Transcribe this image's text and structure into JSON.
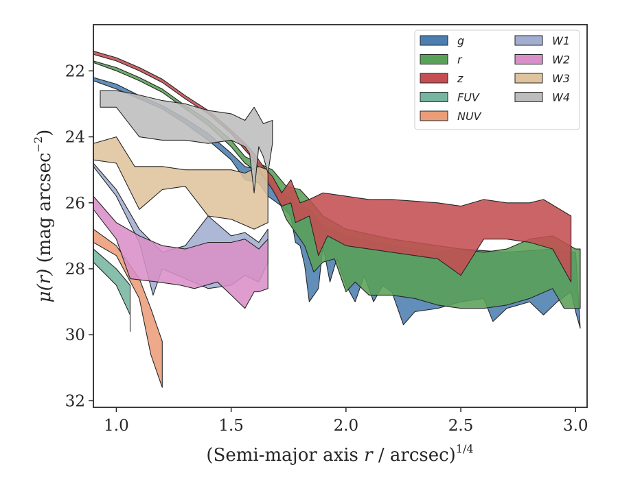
{
  "chart_data": {
    "type": "area",
    "xlabel_main": "(Semi-major axis ",
    "xlabel_var": "r",
    "xlabel_unit": " / arcsec)",
    "xlabel_exp": "1/4",
    "ylabel_sym": "μ(",
    "ylabel_var": "r",
    "ylabel_close": ")",
    "ylabel_unit": " (mag arcsec",
    "ylabel_exp": "−2",
    "ylabel_end": ")",
    "xlim": [
      0.9,
      3.05
    ],
    "ylim": [
      32.2,
      20.6
    ],
    "y_inverted": true,
    "xticks": [
      1.0,
      1.5,
      2.0,
      2.5,
      3.0
    ],
    "xtick_labels": [
      "1.0",
      "1.5",
      "2.0",
      "2.5",
      "3.0"
    ],
    "yticks": [
      22,
      24,
      26,
      28,
      30,
      32
    ],
    "ytick_labels": [
      "22",
      "24",
      "26",
      "28",
      "30",
      "32"
    ],
    "legend_position": "top-right",
    "legend_columns": 2,
    "series": [
      {
        "name": "g",
        "label_text": "g",
        "color": "#4c7eb0",
        "upper": [
          [
            0.9,
            22.2
          ],
          [
            1.0,
            22.4
          ],
          [
            1.1,
            22.75
          ],
          [
            1.2,
            23.05
          ],
          [
            1.3,
            23.45
          ],
          [
            1.4,
            23.9
          ],
          [
            1.5,
            24.5
          ],
          [
            1.56,
            24.9
          ],
          [
            1.62,
            25.0
          ],
          [
            1.68,
            25.3
          ],
          [
            1.74,
            25.8
          ],
          [
            1.8,
            26.1
          ],
          [
            1.84,
            26.2
          ],
          [
            1.9,
            26.7
          ],
          [
            2.0,
            27.0
          ],
          [
            2.2,
            27.3
          ],
          [
            2.4,
            27.5
          ],
          [
            2.5,
            27.4
          ],
          [
            2.7,
            27.5
          ],
          [
            2.9,
            27.4
          ],
          [
            3.0,
            27.5
          ]
        ],
        "lower": [
          [
            0.9,
            22.3
          ],
          [
            1.0,
            22.55
          ],
          [
            1.1,
            22.85
          ],
          [
            1.2,
            23.15
          ],
          [
            1.3,
            23.6
          ],
          [
            1.4,
            24.1
          ],
          [
            1.5,
            24.7
          ],
          [
            1.56,
            25.3
          ],
          [
            1.62,
            25.4
          ],
          [
            1.66,
            25.8
          ],
          [
            1.72,
            26.1
          ],
          [
            1.76,
            26.4
          ],
          [
            1.78,
            27.2
          ],
          [
            1.8,
            27.3
          ],
          [
            1.82,
            27.9
          ],
          [
            1.84,
            29.0
          ],
          [
            1.88,
            28.6
          ],
          [
            1.9,
            27.3
          ],
          [
            1.93,
            28.4
          ],
          [
            1.96,
            27.7
          ],
          [
            2.0,
            28.5
          ],
          [
            2.04,
            29.0
          ],
          [
            2.08,
            28.2
          ],
          [
            2.12,
            29.0
          ],
          [
            2.16,
            28.5
          ],
          [
            2.2,
            28.7
          ],
          [
            2.25,
            29.7
          ],
          [
            2.3,
            29.3
          ],
          [
            2.4,
            29.2
          ],
          [
            2.5,
            29.0
          ],
          [
            2.6,
            28.9
          ],
          [
            2.64,
            29.6
          ],
          [
            2.7,
            29.2
          ],
          [
            2.8,
            29.0
          ],
          [
            2.86,
            29.4
          ],
          [
            2.92,
            29.0
          ],
          [
            2.98,
            28.7
          ],
          [
            3.0,
            29.3
          ],
          [
            3.02,
            29.8
          ]
        ]
      },
      {
        "name": "r",
        "label_text": "r",
        "color": "#5aa158",
        "upper": [
          [
            0.9,
            21.7
          ],
          [
            1.0,
            21.9
          ],
          [
            1.1,
            22.2
          ],
          [
            1.2,
            22.55
          ],
          [
            1.3,
            23.05
          ],
          [
            1.4,
            23.5
          ],
          [
            1.5,
            24.1
          ],
          [
            1.56,
            24.6
          ],
          [
            1.62,
            24.8
          ],
          [
            1.68,
            25.0
          ],
          [
            1.74,
            25.5
          ],
          [
            1.8,
            25.6
          ],
          [
            1.84,
            25.9
          ],
          [
            1.9,
            26.4
          ],
          [
            2.0,
            26.8
          ],
          [
            2.2,
            27.1
          ],
          [
            2.4,
            27.3
          ],
          [
            2.5,
            27.4
          ],
          [
            2.6,
            27.5
          ],
          [
            2.7,
            27.4
          ],
          [
            2.8,
            27.1
          ],
          [
            2.9,
            27.0
          ],
          [
            3.0,
            27.4
          ],
          [
            3.02,
            27.4
          ]
        ],
        "lower": [
          [
            0.9,
            21.75
          ],
          [
            1.0,
            22.0
          ],
          [
            1.1,
            22.3
          ],
          [
            1.2,
            22.65
          ],
          [
            1.3,
            23.15
          ],
          [
            1.4,
            23.65
          ],
          [
            1.5,
            24.3
          ],
          [
            1.56,
            24.8
          ],
          [
            1.6,
            25.0
          ],
          [
            1.66,
            25.3
          ],
          [
            1.7,
            25.8
          ],
          [
            1.74,
            26.5
          ],
          [
            1.78,
            26.9
          ],
          [
            1.82,
            27.3
          ],
          [
            1.86,
            28.1
          ],
          [
            1.9,
            27.8
          ],
          [
            1.95,
            27.7
          ],
          [
            2.0,
            28.7
          ],
          [
            2.04,
            28.4
          ],
          [
            2.1,
            28.8
          ],
          [
            2.2,
            28.8
          ],
          [
            2.3,
            28.9
          ],
          [
            2.4,
            29.1
          ],
          [
            2.5,
            29.2
          ],
          [
            2.6,
            29.2
          ],
          [
            2.7,
            29.1
          ],
          [
            2.8,
            28.9
          ],
          [
            2.9,
            28.6
          ],
          [
            2.95,
            29.2
          ],
          [
            3.0,
            29.2
          ],
          [
            3.02,
            29.2
          ]
        ]
      },
      {
        "name": "z",
        "label_text": "z",
        "color": "#c44e52",
        "upper": [
          [
            0.9,
            21.4
          ],
          [
            1.0,
            21.6
          ],
          [
            1.1,
            21.9
          ],
          [
            1.2,
            22.25
          ],
          [
            1.3,
            22.75
          ],
          [
            1.4,
            23.2
          ],
          [
            1.5,
            23.8
          ],
          [
            1.56,
            24.2
          ],
          [
            1.6,
            24.5
          ],
          [
            1.64,
            24.9
          ],
          [
            1.68,
            25.2
          ],
          [
            1.72,
            25.7
          ],
          [
            1.76,
            25.3
          ],
          [
            1.8,
            26.0
          ],
          [
            1.84,
            25.9
          ],
          [
            1.9,
            25.7
          ],
          [
            2.0,
            25.8
          ],
          [
            2.1,
            25.9
          ],
          [
            2.2,
            25.9
          ],
          [
            2.4,
            26.0
          ],
          [
            2.5,
            26.1
          ],
          [
            2.6,
            25.9
          ],
          [
            2.7,
            26.0
          ],
          [
            2.8,
            26.0
          ],
          [
            2.86,
            25.9
          ],
          [
            2.98,
            26.4
          ]
        ],
        "lower": [
          [
            0.9,
            21.5
          ],
          [
            1.0,
            21.7
          ],
          [
            1.1,
            22.0
          ],
          [
            1.2,
            22.35
          ],
          [
            1.3,
            22.85
          ],
          [
            1.4,
            23.3
          ],
          [
            1.5,
            23.9
          ],
          [
            1.56,
            24.4
          ],
          [
            1.6,
            24.7
          ],
          [
            1.64,
            25.2
          ],
          [
            1.68,
            25.6
          ],
          [
            1.72,
            26.1
          ],
          [
            1.76,
            26.0
          ],
          [
            1.78,
            26.6
          ],
          [
            1.84,
            26.4
          ],
          [
            1.88,
            27.6
          ],
          [
            1.92,
            27.0
          ],
          [
            2.0,
            27.3
          ],
          [
            2.1,
            27.4
          ],
          [
            2.2,
            27.5
          ],
          [
            2.3,
            27.6
          ],
          [
            2.4,
            27.7
          ],
          [
            2.5,
            28.2
          ],
          [
            2.6,
            27.1
          ],
          [
            2.7,
            27.1
          ],
          [
            2.8,
            27.2
          ],
          [
            2.9,
            27.4
          ],
          [
            2.98,
            28.4
          ]
        ]
      },
      {
        "name": "FUV",
        "label_text": "FUV",
        "color": "#76b6a1",
        "upper": [
          [
            0.9,
            27.4
          ],
          [
            1.0,
            28.0
          ],
          [
            1.06,
            28.5
          ]
        ],
        "lower": [
          [
            0.9,
            27.8
          ],
          [
            1.0,
            28.5
          ],
          [
            1.06,
            29.4
          ],
          [
            1.06,
            29.9
          ]
        ]
      },
      {
        "name": "NUV",
        "label_text": "NUV",
        "color": "#ea9d79",
        "upper": [
          [
            0.9,
            26.8
          ],
          [
            1.0,
            27.3
          ],
          [
            1.1,
            28.3
          ],
          [
            1.15,
            29.2
          ],
          [
            1.2,
            30.2
          ]
        ],
        "lower": [
          [
            0.9,
            27.2
          ],
          [
            1.0,
            27.6
          ],
          [
            1.1,
            28.9
          ],
          [
            1.15,
            30.6
          ],
          [
            1.2,
            31.6
          ]
        ]
      },
      {
        "name": "W1",
        "label_text": "W1",
        "color": "#a1aed0",
        "upper": [
          [
            0.9,
            24.8
          ],
          [
            1.0,
            25.6
          ],
          [
            1.1,
            26.8
          ],
          [
            1.2,
            27.5
          ],
          [
            1.3,
            27.3
          ],
          [
            1.4,
            26.4
          ],
          [
            1.5,
            27.0
          ],
          [
            1.56,
            26.9
          ],
          [
            1.62,
            27.2
          ],
          [
            1.66,
            26.8
          ]
        ],
        "lower": [
          [
            0.9,
            24.9
          ],
          [
            1.0,
            25.8
          ],
          [
            1.1,
            27.2
          ],
          [
            1.16,
            28.8
          ],
          [
            1.2,
            28.0
          ],
          [
            1.3,
            28.3
          ],
          [
            1.4,
            28.6
          ],
          [
            1.5,
            28.5
          ],
          [
            1.56,
            28.2
          ],
          [
            1.62,
            28.4
          ],
          [
            1.66,
            27.8
          ]
        ]
      },
      {
        "name": "W2",
        "label_text": "W2",
        "color": "#d98fc7",
        "upper": [
          [
            0.9,
            25.8
          ],
          [
            1.0,
            26.6
          ],
          [
            1.1,
            27.0
          ],
          [
            1.2,
            27.3
          ],
          [
            1.3,
            27.4
          ],
          [
            1.4,
            27.2
          ],
          [
            1.5,
            27.2
          ],
          [
            1.56,
            27.1
          ],
          [
            1.62,
            27.4
          ],
          [
            1.66,
            27.1
          ]
        ],
        "lower": [
          [
            0.9,
            26.2
          ],
          [
            1.0,
            27.1
          ],
          [
            1.06,
            28.3
          ],
          [
            1.18,
            28.4
          ],
          [
            1.28,
            28.5
          ],
          [
            1.34,
            28.6
          ],
          [
            1.44,
            28.4
          ],
          [
            1.5,
            28.8
          ],
          [
            1.56,
            29.2
          ],
          [
            1.6,
            28.7
          ],
          [
            1.62,
            28.7
          ],
          [
            1.66,
            28.6
          ]
        ]
      },
      {
        "name": "W3",
        "label_text": "W3",
        "color": "#dfc39d",
        "upper": [
          [
            0.9,
            24.2
          ],
          [
            1.0,
            24.0
          ],
          [
            1.08,
            24.9
          ],
          [
            1.2,
            24.9
          ],
          [
            1.3,
            25.0
          ],
          [
            1.4,
            25.0
          ],
          [
            1.5,
            25.0
          ],
          [
            1.56,
            25.1
          ],
          [
            1.62,
            24.9
          ],
          [
            1.66,
            25.0
          ]
        ],
        "lower": [
          [
            0.9,
            24.7
          ],
          [
            1.0,
            24.8
          ],
          [
            1.1,
            26.2
          ],
          [
            1.2,
            25.6
          ],
          [
            1.3,
            25.5
          ],
          [
            1.4,
            26.4
          ],
          [
            1.5,
            26.5
          ],
          [
            1.6,
            26.8
          ],
          [
            1.66,
            26.6
          ]
        ]
      },
      {
        "name": "W4",
        "label_text": "W4",
        "color": "#bdbdbd",
        "upper": [
          [
            0.93,
            22.6
          ],
          [
            1.0,
            22.6
          ],
          [
            1.08,
            22.7
          ],
          [
            1.2,
            22.9
          ],
          [
            1.3,
            23.0
          ],
          [
            1.4,
            23.2
          ],
          [
            1.5,
            23.3
          ],
          [
            1.56,
            23.5
          ],
          [
            1.6,
            23.1
          ],
          [
            1.64,
            23.6
          ],
          [
            1.68,
            23.5
          ]
        ],
        "lower": [
          [
            0.93,
            23.1
          ],
          [
            1.0,
            23.1
          ],
          [
            1.1,
            24.0
          ],
          [
            1.2,
            24.1
          ],
          [
            1.3,
            24.1
          ],
          [
            1.4,
            24.2
          ],
          [
            1.5,
            24.1
          ],
          [
            1.56,
            24.3
          ],
          [
            1.58,
            24.5
          ],
          [
            1.6,
            25.7
          ],
          [
            1.62,
            24.3
          ],
          [
            1.64,
            24.6
          ],
          [
            1.66,
            25.1
          ],
          [
            1.68,
            24.2
          ]
        ]
      }
    ]
  }
}
